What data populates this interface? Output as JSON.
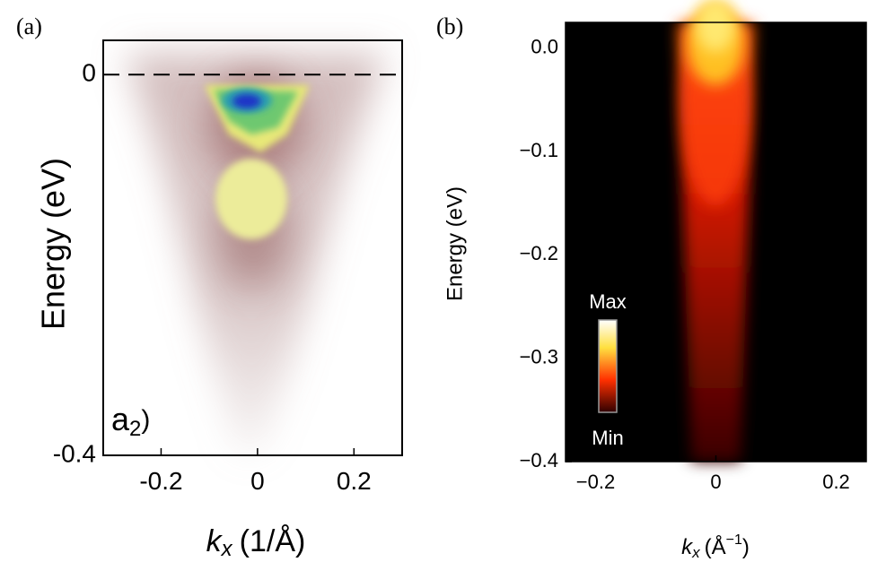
{
  "chart_data": [
    {
      "type": "heatmap",
      "panel_label": "(a)",
      "y_label": "Energy (eV)",
      "x_label": {
        "symbol": "k",
        "subscript": "x",
        "unit": "(1/Å)"
      },
      "inset_label": {
        "main": "a",
        "subscript": "2",
        "close": ")"
      },
      "xlim": [
        -0.32,
        0.3
      ],
      "xticks": [
        {
          "value": -0.2,
          "label": "-0.2"
        },
        0,
        0.2
      ],
      "ylim": [
        -0.4,
        0.036
      ],
      "yticks": [
        0,
        {
          "value": -0.4,
          "label": "-0.4"
        }
      ],
      "dashed_zero_line": true
    },
    {
      "type": "heatmap",
      "panel_label": "(b)",
      "y_label": "Energy (eV)",
      "x_label": {
        "symbol": "k",
        "subscript": "x",
        "unit": "(Å",
        "superscript": "−1",
        "close": ")"
      },
      "colorbar": {
        "max_label": "Max",
        "min_label": "Min"
      },
      "xlim": [
        -0.25,
        0.25
      ],
      "xticks": [
        {
          "value": -0.2,
          "label": "−0.2"
        },
        0,
        0.2
      ],
      "ylim": [
        -0.4,
        0.025
      ],
      "yticks": [
        {
          "value": 0,
          "label": "0.0"
        },
        {
          "value": -0.1,
          "label": "−0.1"
        },
        {
          "value": -0.2,
          "label": "−0.2"
        },
        {
          "value": -0.3,
          "label": "−0.3"
        },
        {
          "value": -0.4,
          "label": "−0.4"
        }
      ]
    }
  ]
}
